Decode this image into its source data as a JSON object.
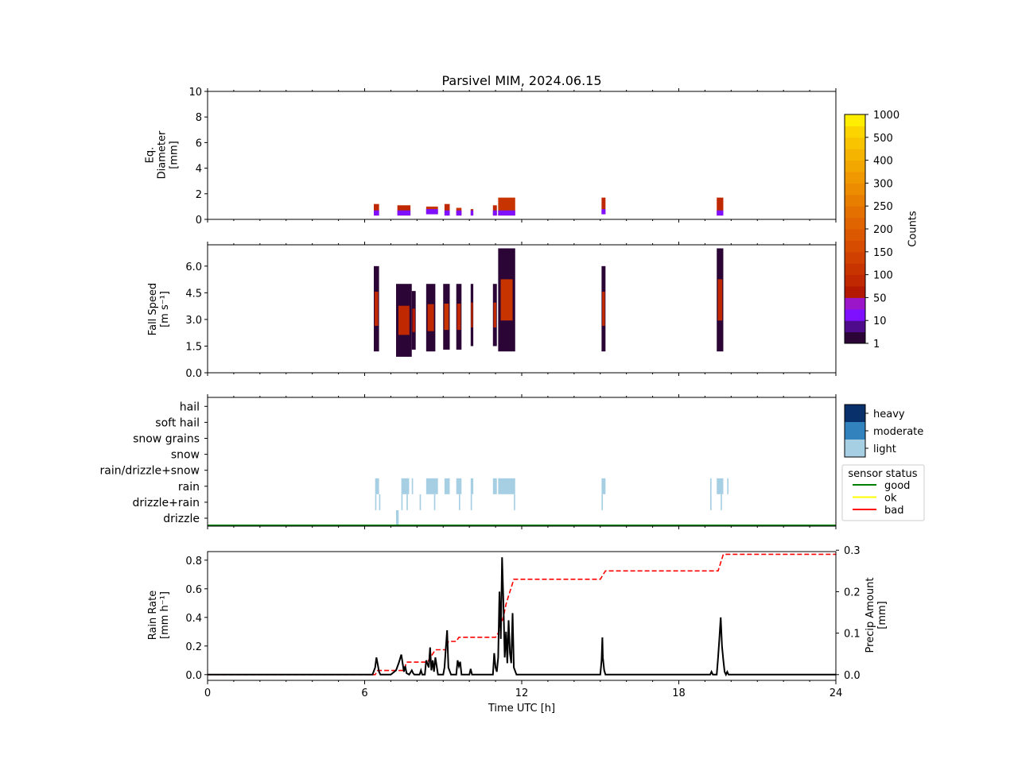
{
  "title": "Parsivel MIM, 2024.06.15",
  "chart_data": [
    {
      "id": "diameter",
      "type": "heatmap",
      "ylabel": [
        "Eq.",
        "Diameter",
        "[mm]"
      ],
      "ylim": [
        0,
        10
      ],
      "yticks": [
        "0",
        "2",
        "4",
        "6",
        "8",
        "10"
      ],
      "ytick_values": [
        0,
        2,
        4,
        6,
        8,
        10
      ],
      "cells": [
        {
          "t0": 6.35,
          "t1": 6.55,
          "y0": 0.3,
          "y1": 1.2,
          "level": 5
        },
        {
          "t0": 7.25,
          "t1": 7.75,
          "y0": 0.3,
          "y1": 1.1,
          "level": 5
        },
        {
          "t0": 8.35,
          "t1": 8.8,
          "y0": 0.4,
          "y1": 1.0,
          "level": 6
        },
        {
          "t0": 9.05,
          "t1": 9.25,
          "y0": 0.3,
          "y1": 1.2,
          "level": 5
        },
        {
          "t0": 9.5,
          "t1": 9.7,
          "y0": 0.3,
          "y1": 0.9,
          "level": 6
        },
        {
          "t0": 10.05,
          "t1": 10.15,
          "y0": 0.3,
          "y1": 0.8,
          "level": 5
        },
        {
          "t0": 10.9,
          "t1": 11.05,
          "y0": 0.3,
          "y1": 1.1,
          "level": 5
        },
        {
          "t0": 11.1,
          "t1": 11.75,
          "y0": 0.3,
          "y1": 1.7,
          "level": 6
        },
        {
          "t0": 15.05,
          "t1": 15.2,
          "y0": 0.4,
          "y1": 1.7,
          "level": 5
        },
        {
          "t0": 19.45,
          "t1": 19.7,
          "y0": 0.3,
          "y1": 1.7,
          "level": 5
        }
      ]
    },
    {
      "id": "fallspeed",
      "type": "heatmap",
      "ylabel": [
        "Fall Speed",
        "[m s⁻¹]"
      ],
      "ylim": [
        0,
        7.2
      ],
      "yticks": [
        "0.0",
        "1.5",
        "3.0",
        "4.5",
        "6.0"
      ],
      "ytick_values": [
        0,
        1.5,
        3.0,
        4.5,
        6.0
      ],
      "cells": [
        {
          "t0": 6.35,
          "t1": 6.55,
          "y0": 1.2,
          "y1": 6.0,
          "level": 5
        },
        {
          "t0": 7.2,
          "t1": 7.8,
          "y0": 0.9,
          "y1": 5.0,
          "level": 5
        },
        {
          "t0": 7.8,
          "t1": 7.95,
          "y0": 1.3,
          "y1": 4.6,
          "level": 4
        },
        {
          "t0": 8.35,
          "t1": 8.7,
          "y0": 1.2,
          "y1": 5.0,
          "level": 5
        },
        {
          "t0": 9.0,
          "t1": 9.25,
          "y0": 1.3,
          "y1": 5.0,
          "level": 6
        },
        {
          "t0": 9.5,
          "t1": 9.7,
          "y0": 1.3,
          "y1": 5.0,
          "level": 5
        },
        {
          "t0": 10.05,
          "t1": 10.15,
          "y0": 1.5,
          "y1": 5.0,
          "level": 5
        },
        {
          "t0": 10.9,
          "t1": 11.05,
          "y0": 1.5,
          "y1": 5.0,
          "level": 5
        },
        {
          "t0": 11.1,
          "t1": 11.75,
          "y0": 1.2,
          "y1": 7.0,
          "level": 6
        },
        {
          "t0": 15.05,
          "t1": 15.2,
          "y0": 1.2,
          "y1": 6.0,
          "level": 5
        },
        {
          "t0": 19.45,
          "t1": 19.7,
          "y0": 1.2,
          "y1": 7.0,
          "level": 5
        }
      ]
    },
    {
      "id": "weather",
      "type": "heatmap",
      "categories": [
        "drizzle",
        "drizzle+rain",
        "rain",
        "rain/drizzle+snow",
        "snow",
        "snow grains",
        "soft hail",
        "hail"
      ],
      "intensity_labels": [
        "heavy",
        "moderate",
        "light"
      ],
      "intensity_colors": [
        "#08306b",
        "#3182bd",
        "#a6cfe4"
      ],
      "status_title": "sensor status",
      "status_labels": [
        "good",
        "ok",
        "bad"
      ],
      "status_colors": [
        "#008000",
        "#ffff00",
        "#ff0000"
      ],
      "status_line": "good",
      "cells": [
        {
          "t0": 6.4,
          "t1": 6.55,
          "cat": "rain"
        },
        {
          "t0": 6.4,
          "t1": 6.45,
          "cat": "drizzle+rain"
        },
        {
          "t0": 6.55,
          "t1": 6.6,
          "cat": "drizzle+rain"
        },
        {
          "t0": 7.2,
          "t1": 7.3,
          "cat": "drizzle"
        },
        {
          "t0": 7.4,
          "t1": 7.7,
          "cat": "rain"
        },
        {
          "t0": 7.4,
          "t1": 7.45,
          "cat": "drizzle+rain"
        },
        {
          "t0": 7.6,
          "t1": 7.65,
          "cat": "drizzle+rain"
        },
        {
          "t0": 7.8,
          "t1": 7.85,
          "cat": "rain"
        },
        {
          "t0": 8.1,
          "t1": 8.15,
          "cat": "drizzle+rain"
        },
        {
          "t0": 8.35,
          "t1": 8.8,
          "cat": "rain"
        },
        {
          "t0": 8.65,
          "t1": 8.7,
          "cat": "drizzle+rain"
        },
        {
          "t0": 9.05,
          "t1": 9.25,
          "cat": "rain"
        },
        {
          "t0": 9.5,
          "t1": 9.7,
          "cat": "rain"
        },
        {
          "t0": 9.6,
          "t1": 9.65,
          "cat": "drizzle+rain"
        },
        {
          "t0": 10.05,
          "t1": 10.15,
          "cat": "rain"
        },
        {
          "t0": 10.05,
          "t1": 10.1,
          "cat": "drizzle+rain"
        },
        {
          "t0": 10.9,
          "t1": 11.05,
          "cat": "rain"
        },
        {
          "t0": 11.1,
          "t1": 11.75,
          "cat": "rain"
        },
        {
          "t0": 11.7,
          "t1": 11.75,
          "cat": "drizzle+rain"
        },
        {
          "t0": 15.05,
          "t1": 15.2,
          "cat": "rain"
        },
        {
          "t0": 15.05,
          "t1": 15.1,
          "cat": "drizzle+rain"
        },
        {
          "t0": 19.2,
          "t1": 19.25,
          "cat": "rain"
        },
        {
          "t0": 19.2,
          "t1": 19.25,
          "cat": "drizzle+rain"
        },
        {
          "t0": 19.45,
          "t1": 19.7,
          "cat": "rain"
        },
        {
          "t0": 19.6,
          "t1": 19.65,
          "cat": "drizzle+rain"
        },
        {
          "t0": 19.85,
          "t1": 19.9,
          "cat": "rain"
        }
      ]
    },
    {
      "id": "rainrate",
      "type": "line",
      "ylabel": [
        "Rain Rate",
        "[mm h⁻¹]"
      ],
      "ylabel2": [
        "Precip Amount",
        "[mm]"
      ],
      "xlabel": "Time UTC [h]",
      "xlim": [
        0,
        24
      ],
      "xticks": [
        "0",
        "6",
        "12",
        "18",
        "24"
      ],
      "xtick_values": [
        0,
        6,
        12,
        18,
        24
      ],
      "ylim": [
        -0.04,
        0.86
      ],
      "yticks": [
        "0.0",
        "0.2",
        "0.4",
        "0.6",
        "0.8"
      ],
      "ytick_values": [
        0,
        0.2,
        0.4,
        0.6,
        0.8
      ],
      "y2lim": [
        -0.0138,
        0.2966
      ],
      "y2ticks": [
        "0.0",
        "0.1",
        "0.2",
        "0.3"
      ],
      "y2tick_values": [
        0,
        0.1,
        0.2,
        0.3
      ],
      "series": [
        {
          "role": "rain_rate",
          "color": "#000000",
          "style": "solid",
          "x": [
            0,
            6.3,
            6.4,
            6.45,
            6.5,
            6.55,
            6.6,
            7.0,
            7.2,
            7.3,
            7.4,
            7.5,
            7.55,
            7.6,
            7.7,
            7.8,
            7.85,
            7.9,
            8.1,
            8.15,
            8.2,
            8.3,
            8.35,
            8.45,
            8.5,
            8.55,
            8.6,
            8.65,
            8.7,
            8.8,
            9.0,
            9.05,
            9.1,
            9.15,
            9.2,
            9.3,
            9.5,
            9.55,
            9.6,
            9.65,
            9.7,
            10.0,
            10.05,
            10.1,
            10.2,
            10.9,
            10.95,
            11.0,
            11.05,
            11.1,
            11.15,
            11.2,
            11.25,
            11.3,
            11.35,
            11.4,
            11.45,
            11.5,
            11.55,
            11.6,
            11.65,
            11.7,
            11.8,
            15.0,
            15.05,
            15.08,
            15.1,
            15.15,
            15.2,
            15.3,
            19.2,
            19.25,
            19.3,
            19.45,
            19.5,
            19.55,
            19.6,
            19.65,
            19.7,
            19.75,
            19.8,
            19.85,
            19.9,
            24
          ],
          "y": [
            0,
            0,
            0.05,
            0.12,
            0.07,
            0.02,
            0,
            0,
            0.03,
            0.08,
            0.14,
            0.02,
            0.06,
            0.01,
            0,
            0.03,
            0.01,
            0,
            0,
            0.03,
            0,
            0,
            0.1,
            0.05,
            0.19,
            0.03,
            0.1,
            0.02,
            0.12,
            0,
            0,
            0.05,
            0.18,
            0.31,
            0.05,
            0,
            0,
            0.1,
            0.06,
            0.09,
            0,
            0,
            0.04,
            0,
            0,
            0,
            0.15,
            0.05,
            0.02,
            0.12,
            0.58,
            0.25,
            0.82,
            0.5,
            0.12,
            0.3,
            0.08,
            0.38,
            0.15,
            0.08,
            0.43,
            0.05,
            0,
            0,
            0.1,
            0.26,
            0.12,
            0.03,
            0,
            0,
            0,
            0.02,
            0,
            0,
            0.12,
            0.25,
            0.4,
            0.2,
            0.1,
            0.02,
            0,
            0.02,
            0,
            0
          ]
        },
        {
          "role": "precip_amount",
          "axis": "right",
          "color": "#ff0000",
          "style": "dashed",
          "x": [
            0,
            6.4,
            6.5,
            7.5,
            7.6,
            8.4,
            8.5,
            8.6,
            8.7,
            9.1,
            9.2,
            9.5,
            9.6,
            11.0,
            11.1,
            11.2,
            11.3,
            11.4,
            11.5,
            11.6,
            11.7,
            15.0,
            15.1,
            15.2,
            19.5,
            19.6,
            19.7,
            24
          ],
          "y": [
            0,
            0,
            0.01,
            0.01,
            0.03,
            0.03,
            0.04,
            0.05,
            0.06,
            0.06,
            0.08,
            0.08,
            0.09,
            0.09,
            0.1,
            0.12,
            0.14,
            0.17,
            0.19,
            0.21,
            0.23,
            0.23,
            0.24,
            0.25,
            0.25,
            0.27,
            0.29,
            0.29
          ]
        }
      ]
    }
  ],
  "colorbar": {
    "label": "Counts",
    "tick_labels": [
      "1",
      "10",
      "50",
      "100",
      "150",
      "200",
      "250",
      "300",
      "400",
      "500",
      "1000"
    ],
    "colors": [
      "#2a0536",
      "#4e0b8c",
      "#7f10ff",
      "#9a16c8",
      "#b31800",
      "#bf2800",
      "#c83400",
      "#d04000",
      "#d64c00",
      "#dc5800",
      "#e06400",
      "#e47000",
      "#e87e00",
      "#ec8c00",
      "#f09800",
      "#f2a600",
      "#f5b400",
      "#f8c400",
      "#fcd400",
      "#ffee00"
    ]
  }
}
